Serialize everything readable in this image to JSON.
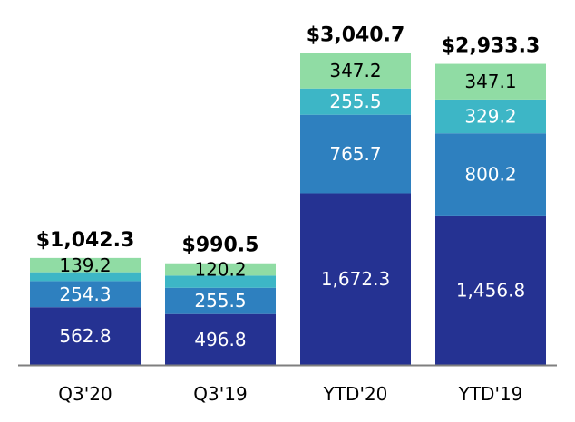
{
  "chart_data": {
    "type": "bar",
    "stacked": true,
    "categories": [
      "Q3'20",
      "Q3'19",
      "YTD'20",
      "YTD'19"
    ],
    "totals": [
      "$1,042.3",
      "$990.5",
      "$3,040.7",
      "$2,933.3"
    ],
    "series": [
      {
        "values": [
          562.8,
          496.8,
          1672.3,
          1456.8
        ],
        "labels": [
          "562.8",
          "496.8",
          "1,672.3",
          "1,456.8"
        ],
        "color": "#253292",
        "label_color": "#ffffff"
      },
      {
        "values": [
          254.3,
          255.5,
          765.7,
          800.2
        ],
        "labels": [
          "254.3",
          "255.5",
          "765.7",
          "800.2"
        ],
        "color": "#2e80bf",
        "label_color": "#ffffff"
      },
      {
        "values": [
          86.0,
          118.0,
          255.5,
          329.2
        ],
        "labels": [
          "",
          "",
          "255.5",
          "329.2"
        ],
        "color": "#3db6c6",
        "label_color": "#ffffff"
      },
      {
        "values": [
          139.2,
          120.2,
          347.2,
          347.1
        ],
        "labels": [
          "139.2",
          "120.2",
          "347.2",
          "347.1"
        ],
        "color": "#90dca4",
        "label_color": "#000000"
      }
    ],
    "ylim": [
      0,
      3150
    ],
    "grid": false,
    "legend": "none",
    "title": "",
    "xlabel": "",
    "ylabel": "",
    "axis_color": "#7f7f7f"
  }
}
